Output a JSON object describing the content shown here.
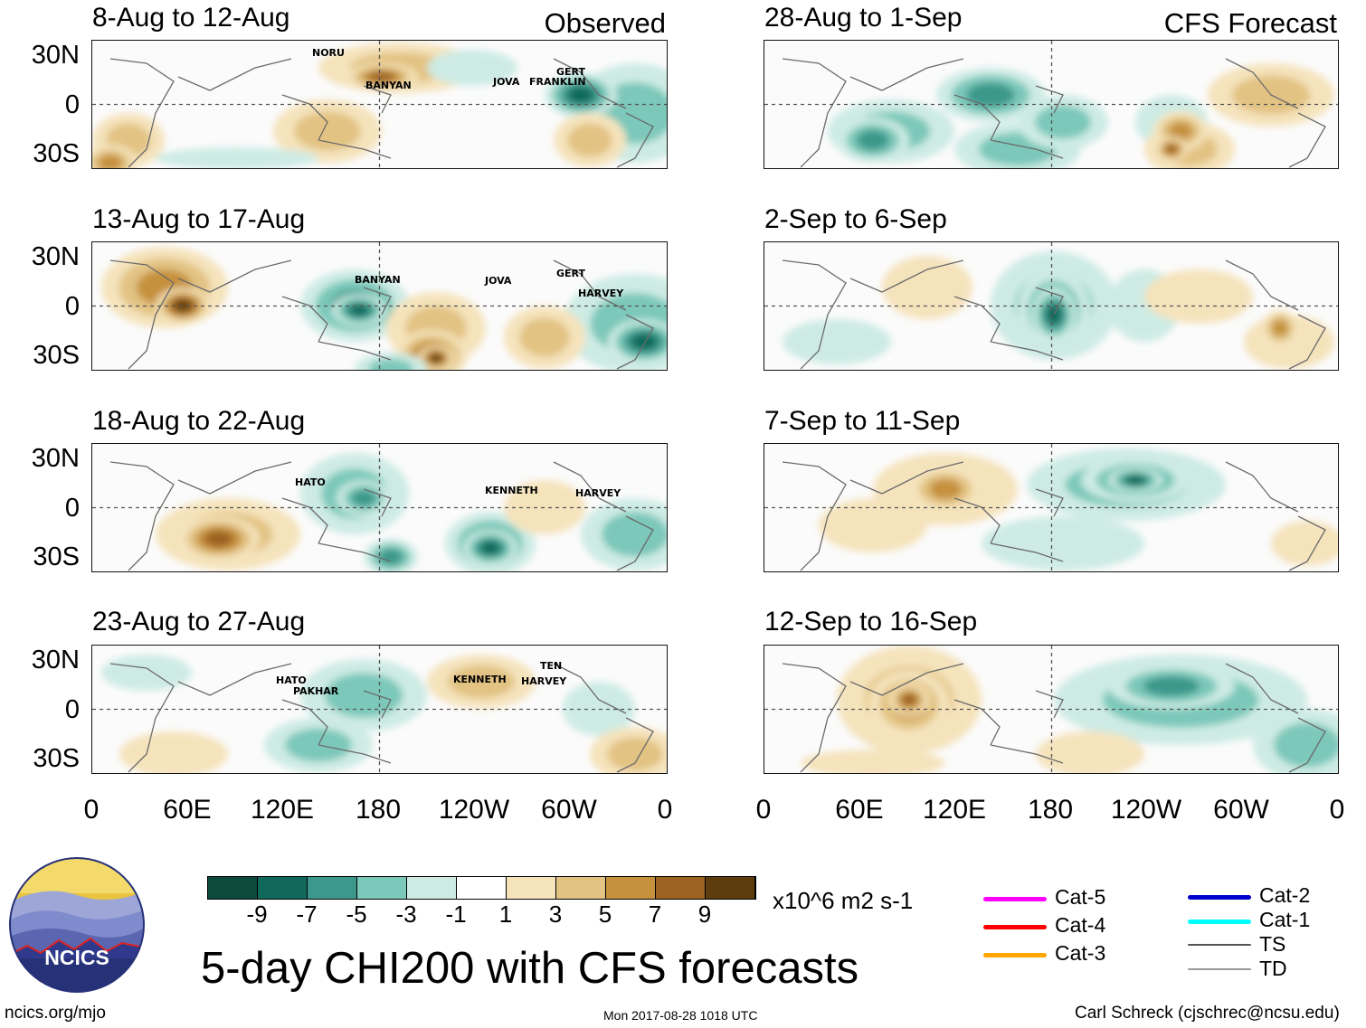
{
  "colors": {
    "scale": [
      "#0b4a3c",
      "#10695a",
      "#3b988a",
      "#7cc8ba",
      "#cdebe4",
      "#ffffff",
      "#f5e3bc",
      "#e2c383",
      "#c6913d",
      "#9b6220",
      "#5e3d0c"
    ],
    "zero_line": "#555555",
    "track_colors": {
      "Cat-5": "#ff00ff",
      "Cat-4": "#ff0000",
      "Cat-3": "#ffa500",
      "Cat-2": "#0000cc",
      "Cat-1": "#00ffff",
      "TS": "#555555",
      "TD": "#999999"
    }
  },
  "columns": {
    "left_tag": "Observed",
    "right_tag": "CFS Forecast"
  },
  "y_labels": [
    "30N",
    "0",
    "30S"
  ],
  "x_labels": [
    "0",
    "60E",
    "120E",
    "180",
    "120W",
    "60W",
    "0"
  ],
  "panels": {
    "left": [
      {
        "title": "8-Aug to 12-Aug",
        "storms": [
          "NORU",
          "BANYAN",
          "JOVA",
          "GERT",
          "FRANKLIN"
        ]
      },
      {
        "title": "13-Aug to 17-Aug",
        "storms": [
          "BANYAN",
          "JOVA",
          "GERT",
          "HARVEY"
        ]
      },
      {
        "title": "18-Aug to 22-Aug",
        "storms": [
          "HATO",
          "KENNETH",
          "HARVEY"
        ]
      },
      {
        "title": "23-Aug to 27-Aug",
        "storms": [
          "HATO",
          "PAKHAR",
          "KENNETH",
          "TEN",
          "HARVEY"
        ]
      }
    ],
    "right": [
      {
        "title": "28-Aug to 1-Sep"
      },
      {
        "title": "2-Sep to 6-Sep"
      },
      {
        "title": "7-Sep to 11-Sep"
      },
      {
        "title": "12-Sep to 16-Sep"
      }
    ]
  },
  "colorbar": {
    "labels": [
      "-9",
      "-7",
      "-5",
      "-3",
      "-1",
      "1",
      "3",
      "5",
      "7",
      "9"
    ],
    "units": "x10^6 m2 s-1"
  },
  "legend": {
    "left": [
      {
        "label": "Cat-5",
        "key": "Cat-5"
      },
      {
        "label": "Cat-4",
        "key": "Cat-4"
      },
      {
        "label": "Cat-3",
        "key": "Cat-3"
      }
    ],
    "right": [
      {
        "label": "Cat-2",
        "key": "Cat-2"
      },
      {
        "label": "Cat-1",
        "key": "Cat-1"
      },
      {
        "label": "TS",
        "key": "TS"
      },
      {
        "label": "TD",
        "key": "TD"
      }
    ]
  },
  "logo_text": "NCICS",
  "main_title": "5-day CHI200 with CFS forecasts",
  "footer": {
    "left": "ncics.org/mjo",
    "center": "Mon 2017-08-28 1018 UTC",
    "right": "Carl Schreck (cjschrec@ncsu.edu)"
  }
}
